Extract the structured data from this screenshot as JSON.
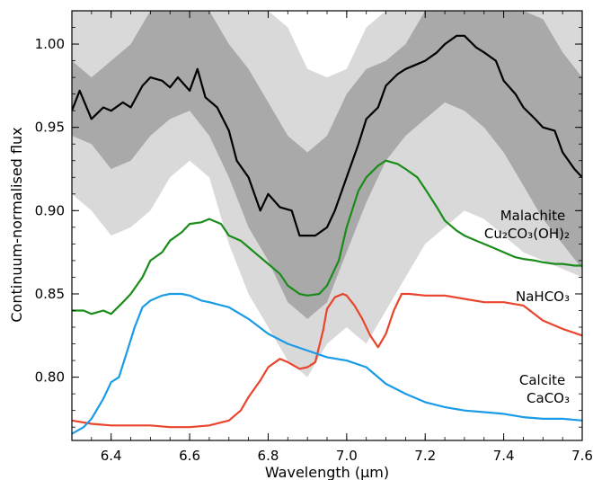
{
  "chart_data": {
    "type": "line",
    "title": "",
    "xlabel": "Wavelength (µm)",
    "ylabel": "Continuum-normalised flux",
    "xlim": [
      6.3,
      7.6
    ],
    "ylim": [
      0.762,
      1.02
    ],
    "x_ticks": [
      6.4,
      6.6,
      6.8,
      7.0,
      7.2,
      7.4,
      7.6
    ],
    "x_tick_labels": [
      "6.4",
      "6.6",
      "6.8",
      "7.0",
      "7.2",
      "7.4",
      "7.6"
    ],
    "y_ticks": [
      0.8,
      0.85,
      0.9,
      0.95,
      1.0
    ],
    "y_tick_labels": [
      "0.80",
      "0.85",
      "0.90",
      "0.95",
      "1.00"
    ],
    "grid": false,
    "legend": "none",
    "bands": [
      {
        "name": "outer",
        "color": "#d9d9d9",
        "x": [
          6.3,
          6.35,
          6.4,
          6.45,
          6.5,
          6.55,
          6.6,
          6.65,
          6.7,
          6.75,
          6.8,
          6.85,
          6.9,
          6.95,
          7.0,
          7.05,
          7.1,
          7.15,
          7.2,
          7.25,
          7.3,
          7.35,
          7.4,
          7.45,
          7.5,
          7.55,
          7.6
        ],
        "upper": [
          1.02,
          1.02,
          1.02,
          1.02,
          1.02,
          1.02,
          1.02,
          1.02,
          1.02,
          1.02,
          1.02,
          1.01,
          0.985,
          0.98,
          0.985,
          1.01,
          1.02,
          1.02,
          1.02,
          1.02,
          1.02,
          1.02,
          1.02,
          1.02,
          1.02,
          1.02,
          1.02
        ],
        "lower": [
          0.91,
          0.9,
          0.885,
          0.89,
          0.9,
          0.92,
          0.93,
          0.92,
          0.88,
          0.85,
          0.83,
          0.81,
          0.8,
          0.82,
          0.83,
          0.82,
          0.84,
          0.86,
          0.88,
          0.89,
          0.9,
          0.895,
          0.885,
          0.875,
          0.87,
          0.865,
          0.86
        ]
      },
      {
        "name": "inner",
        "color": "#a9a9a9",
        "x": [
          6.3,
          6.35,
          6.4,
          6.45,
          6.5,
          6.55,
          6.6,
          6.65,
          6.7,
          6.75,
          6.8,
          6.85,
          6.9,
          6.95,
          7.0,
          7.05,
          7.1,
          7.15,
          7.2,
          7.25,
          7.3,
          7.35,
          7.4,
          7.45,
          7.5,
          7.55,
          7.6
        ],
        "upper": [
          0.99,
          0.98,
          0.99,
          1.0,
          1.02,
          1.02,
          1.02,
          1.02,
          1.0,
          0.985,
          0.965,
          0.945,
          0.935,
          0.945,
          0.97,
          0.985,
          0.99,
          1.0,
          1.02,
          1.02,
          1.02,
          1.02,
          1.02,
          1.02,
          1.015,
          0.995,
          0.98
        ],
        "lower": [
          0.945,
          0.94,
          0.925,
          0.93,
          0.945,
          0.955,
          0.96,
          0.945,
          0.92,
          0.89,
          0.87,
          0.845,
          0.835,
          0.845,
          0.875,
          0.905,
          0.93,
          0.945,
          0.955,
          0.965,
          0.96,
          0.95,
          0.935,
          0.915,
          0.895,
          0.88,
          0.865
        ]
      }
    ],
    "series": [
      {
        "color": "#000000",
        "x": [
          6.3,
          6.32,
          6.35,
          6.38,
          6.4,
          6.43,
          6.45,
          6.48,
          6.5,
          6.53,
          6.55,
          6.57,
          6.6,
          6.62,
          6.64,
          6.67,
          6.7,
          6.72,
          6.75,
          6.78,
          6.8,
          6.83,
          6.86,
          6.88,
          6.9,
          6.92,
          6.95,
          6.97,
          7.0,
          7.03,
          7.05,
          7.08,
          7.1,
          7.13,
          7.15,
          7.18,
          7.2,
          7.23,
          7.25,
          7.28,
          7.3,
          7.33,
          7.35,
          7.38,
          7.4,
          7.43,
          7.45,
          7.48,
          7.5,
          7.53,
          7.55,
          7.58,
          7.6
        ],
        "y": [
          0.96,
          0.972,
          0.955,
          0.962,
          0.96,
          0.965,
          0.962,
          0.975,
          0.98,
          0.978,
          0.974,
          0.98,
          0.972,
          0.985,
          0.968,
          0.962,
          0.948,
          0.93,
          0.92,
          0.9,
          0.91,
          0.902,
          0.9,
          0.885,
          0.885,
          0.885,
          0.89,
          0.9,
          0.92,
          0.94,
          0.955,
          0.962,
          0.975,
          0.982,
          0.985,
          0.988,
          0.99,
          0.995,
          1.0,
          1.005,
          1.005,
          0.998,
          0.995,
          0.99,
          0.978,
          0.97,
          0.962,
          0.955,
          0.95,
          0.948,
          0.935,
          0.925,
          0.92
        ]
      },
      {
        "color": "#1a8c1a",
        "x": [
          6.3,
          6.33,
          6.35,
          6.38,
          6.4,
          6.43,
          6.45,
          6.48,
          6.5,
          6.53,
          6.55,
          6.58,
          6.6,
          6.63,
          6.65,
          6.68,
          6.7,
          6.73,
          6.75,
          6.78,
          6.8,
          6.83,
          6.85,
          6.88,
          6.9,
          6.93,
          6.95,
          6.98,
          7.0,
          7.03,
          7.05,
          7.08,
          7.1,
          7.13,
          7.15,
          7.18,
          7.2,
          7.23,
          7.25,
          7.28,
          7.3,
          7.33,
          7.35,
          7.38,
          7.4,
          7.43,
          7.45,
          7.48,
          7.5,
          7.53,
          7.55,
          7.58,
          7.6
        ],
        "y": [
          0.84,
          0.84,
          0.838,
          0.84,
          0.838,
          0.845,
          0.85,
          0.86,
          0.87,
          0.875,
          0.882,
          0.887,
          0.892,
          0.893,
          0.895,
          0.892,
          0.885,
          0.882,
          0.878,
          0.872,
          0.868,
          0.862,
          0.855,
          0.85,
          0.849,
          0.85,
          0.855,
          0.87,
          0.89,
          0.912,
          0.92,
          0.927,
          0.93,
          0.928,
          0.925,
          0.92,
          0.913,
          0.902,
          0.894,
          0.888,
          0.885,
          0.882,
          0.88,
          0.877,
          0.875,
          0.872,
          0.871,
          0.87,
          0.869,
          0.868,
          0.868,
          0.867,
          0.867
        ]
      },
      {
        "color": "#e8452c",
        "x": [
          6.3,
          6.35,
          6.4,
          6.45,
          6.5,
          6.55,
          6.6,
          6.65,
          6.7,
          6.73,
          6.75,
          6.78,
          6.8,
          6.83,
          6.85,
          6.88,
          6.9,
          6.92,
          6.94,
          6.95,
          6.97,
          6.99,
          7.0,
          7.02,
          7.04,
          7.06,
          7.08,
          7.1,
          7.12,
          7.14,
          7.16,
          7.2,
          7.25,
          7.3,
          7.35,
          7.4,
          7.45,
          7.5,
          7.55,
          7.6
        ],
        "y": [
          0.774,
          0.772,
          0.771,
          0.771,
          0.771,
          0.77,
          0.77,
          0.771,
          0.774,
          0.78,
          0.788,
          0.798,
          0.806,
          0.811,
          0.809,
          0.805,
          0.806,
          0.809,
          0.828,
          0.841,
          0.848,
          0.85,
          0.849,
          0.843,
          0.835,
          0.825,
          0.818,
          0.826,
          0.84,
          0.85,
          0.85,
          0.849,
          0.849,
          0.847,
          0.845,
          0.845,
          0.843,
          0.834,
          0.829,
          0.825
        ]
      },
      {
        "color": "#1a9be6",
        "x": [
          6.3,
          6.33,
          6.35,
          6.38,
          6.4,
          6.42,
          6.44,
          6.46,
          6.48,
          6.5,
          6.53,
          6.55,
          6.58,
          6.6,
          6.63,
          6.65,
          6.7,
          6.75,
          6.8,
          6.85,
          6.9,
          6.95,
          7.0,
          7.05,
          7.1,
          7.15,
          7.2,
          7.25,
          7.3,
          7.35,
          7.4,
          7.45,
          7.5,
          7.55,
          7.6
        ],
        "y": [
          0.766,
          0.77,
          0.775,
          0.787,
          0.797,
          0.8,
          0.815,
          0.83,
          0.842,
          0.846,
          0.849,
          0.85,
          0.85,
          0.849,
          0.846,
          0.845,
          0.842,
          0.835,
          0.826,
          0.82,
          0.816,
          0.812,
          0.81,
          0.806,
          0.796,
          0.79,
          0.785,
          0.782,
          0.78,
          0.779,
          0.778,
          0.776,
          0.775,
          0.775,
          0.774
        ]
      }
    ],
    "annotations": [
      {
        "lines": [
          "Malachite",
          "Cu₂CO₃(OH)₂"
        ]
      },
      {
        "lines": [
          "NaHCO₃"
        ]
      },
      {
        "lines": [
          "Calcite",
          "CaCO₃"
        ]
      }
    ]
  }
}
